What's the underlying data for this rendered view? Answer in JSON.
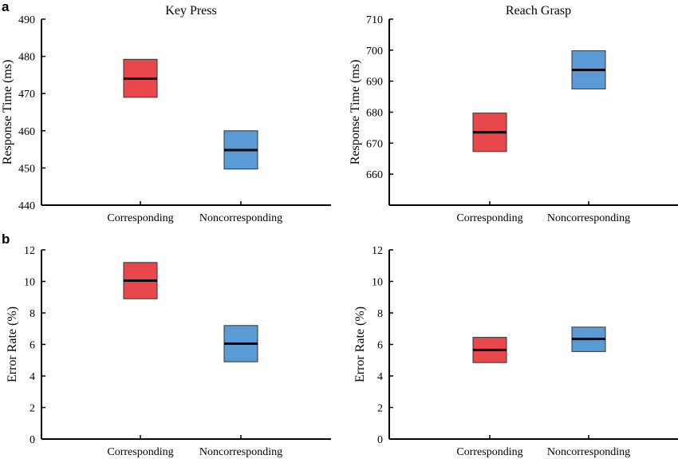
{
  "panel_labels": [
    "a",
    "b"
  ],
  "colors": {
    "corresponding": "#e8474c",
    "noncorresponding": "#5b9bd5"
  },
  "chart_data": [
    {
      "type": "box",
      "title": "Key Press",
      "ylabel": "Response Time (ms)",
      "xlabel": "",
      "categories": [
        "Corresponding",
        "Noncorresponding"
      ],
      "ylim": [
        440,
        490
      ],
      "yticks": [
        440,
        450,
        460,
        470,
        480,
        490
      ],
      "boxes": [
        {
          "category": "Corresponding",
          "low": 469,
          "mean": 474,
          "high": 479.2,
          "color": "#e8474c"
        },
        {
          "category": "Noncorresponding",
          "low": 449.7,
          "mean": 454.8,
          "high": 460,
          "color": "#5b9bd5"
        }
      ]
    },
    {
      "type": "box",
      "title": "Reach Grasp",
      "ylabel": "Response Time (ms)",
      "xlabel": "",
      "categories": [
        "Corresponding",
        "Noncorresponding"
      ],
      "ylim": [
        650,
        710
      ],
      "yticks": [
        660,
        670,
        680,
        690,
        700,
        710
      ],
      "boxes": [
        {
          "category": "Corresponding",
          "low": 667.3,
          "mean": 673.5,
          "high": 679.7,
          "color": "#e8474c"
        },
        {
          "category": "Noncorresponding",
          "low": 687.5,
          "mean": 693.6,
          "high": 699.8,
          "color": "#5b9bd5"
        }
      ]
    },
    {
      "type": "box",
      "title": "",
      "ylabel": "Error Rate (%)",
      "xlabel": "",
      "categories": [
        "Corresponding",
        "Noncorresponding"
      ],
      "ylim": [
        0,
        12
      ],
      "yticks": [
        0,
        2,
        4,
        6,
        8,
        10,
        12
      ],
      "boxes": [
        {
          "category": "Corresponding",
          "low": 8.9,
          "mean": 10.05,
          "high": 11.2,
          "color": "#e8474c"
        },
        {
          "category": "Noncorresponding",
          "low": 4.9,
          "mean": 6.05,
          "high": 7.2,
          "color": "#5b9bd5"
        }
      ]
    },
    {
      "type": "box",
      "title": "",
      "ylabel": "Error Rate (%)",
      "xlabel": "",
      "categories": [
        "Corresponding",
        "Noncorresponding"
      ],
      "ylim": [
        0,
        12
      ],
      "yticks": [
        0,
        2,
        4,
        6,
        8,
        10,
        12
      ],
      "boxes": [
        {
          "category": "Corresponding",
          "low": 4.85,
          "mean": 5.65,
          "high": 6.45,
          "color": "#e8474c"
        },
        {
          "category": "Noncorresponding",
          "low": 5.55,
          "mean": 6.35,
          "high": 7.1,
          "color": "#5b9bd5"
        }
      ]
    }
  ]
}
